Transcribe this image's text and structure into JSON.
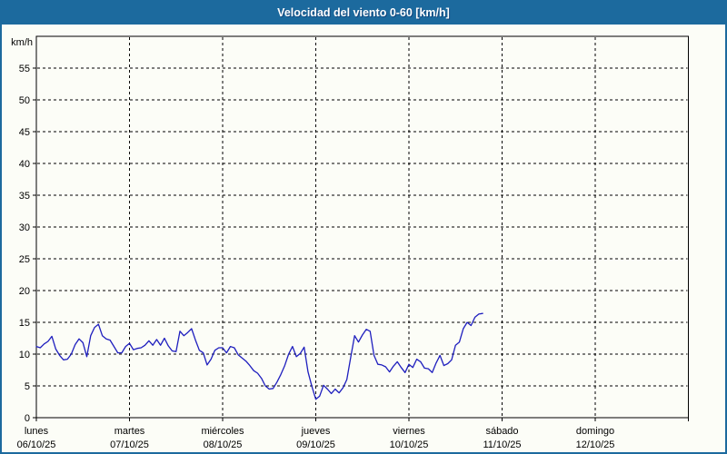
{
  "window": {
    "title": "Velocidad del viento 0-60 [km/h]"
  },
  "colors": {
    "chrome_blue": "#1c6a9e",
    "surface": "#fcfdf7",
    "line_blue": "#1e1ebe",
    "grid": "#000000",
    "title_text": "#ffffff",
    "axis_text": "#000000"
  },
  "chart_data": {
    "type": "line",
    "title": "Velocidad del viento 0-60 [km/h]",
    "ylabel": "km/h",
    "unit_label": "km/h",
    "ylim": [
      0,
      60
    ],
    "ytick_labels": [
      0,
      5,
      10,
      15,
      20,
      25,
      30,
      35,
      40,
      45,
      50,
      55
    ],
    "grid": "dashed",
    "legend_position": "none",
    "x_days": [
      {
        "name": "lunes",
        "date": "06/10/25"
      },
      {
        "name": "martes",
        "date": "07/10/25"
      },
      {
        "name": "miércoles",
        "date": "08/10/25"
      },
      {
        "name": "jueves",
        "date": "09/10/25"
      },
      {
        "name": "viernes",
        "date": "10/10/25"
      },
      {
        "name": "sábado",
        "date": "11/10/25"
      },
      {
        "name": "domingo",
        "date": "12/10/25"
      }
    ],
    "points_per_day": 24,
    "sampling": "hourly, starting lunes 06/10/25 00:00, ending viernes ~19:00",
    "series": [
      {
        "name": "Velocidad del viento",
        "unit": "km/h",
        "values": [
          11.2,
          11.0,
          11.6,
          12.0,
          12.8,
          10.8,
          9.8,
          9.1,
          9.2,
          10.0,
          11.5,
          12.4,
          11.8,
          9.6,
          12.9,
          14.2,
          14.7,
          12.9,
          12.4,
          12.2,
          11.2,
          10.2,
          10.2,
          11.2,
          11.7,
          10.7,
          10.9,
          11.0,
          11.4,
          12.1,
          11.4,
          12.3,
          11.4,
          12.5,
          11.3,
          10.5,
          10.4,
          13.6,
          12.9,
          13.4,
          14.0,
          12.2,
          10.6,
          10.2,
          8.3,
          9.2,
          10.6,
          11.0,
          11.0,
          10.2,
          11.2,
          11.0,
          9.9,
          9.4,
          8.9,
          8.2,
          7.4,
          7.0,
          6.2,
          5.0,
          4.5,
          4.6,
          5.6,
          6.8,
          8.2,
          10.0,
          11.2,
          9.6,
          10.1,
          11.1,
          7.2,
          4.9,
          2.9,
          3.4,
          5.1,
          4.5,
          3.8,
          4.5,
          3.9,
          4.7,
          6.0,
          9.5,
          12.9,
          11.9,
          13.0,
          13.9,
          13.6,
          9.8,
          8.4,
          8.3,
          8.0,
          7.2,
          8.1,
          8.8,
          7.9,
          7.1,
          8.4,
          7.9,
          9.2,
          8.8,
          7.8,
          7.7,
          7.1,
          8.6,
          9.8,
          8.2,
          8.5,
          9.1,
          11.4,
          11.9,
          14.0,
          15.0,
          14.5,
          15.8,
          16.3,
          16.4
        ]
      }
    ]
  }
}
